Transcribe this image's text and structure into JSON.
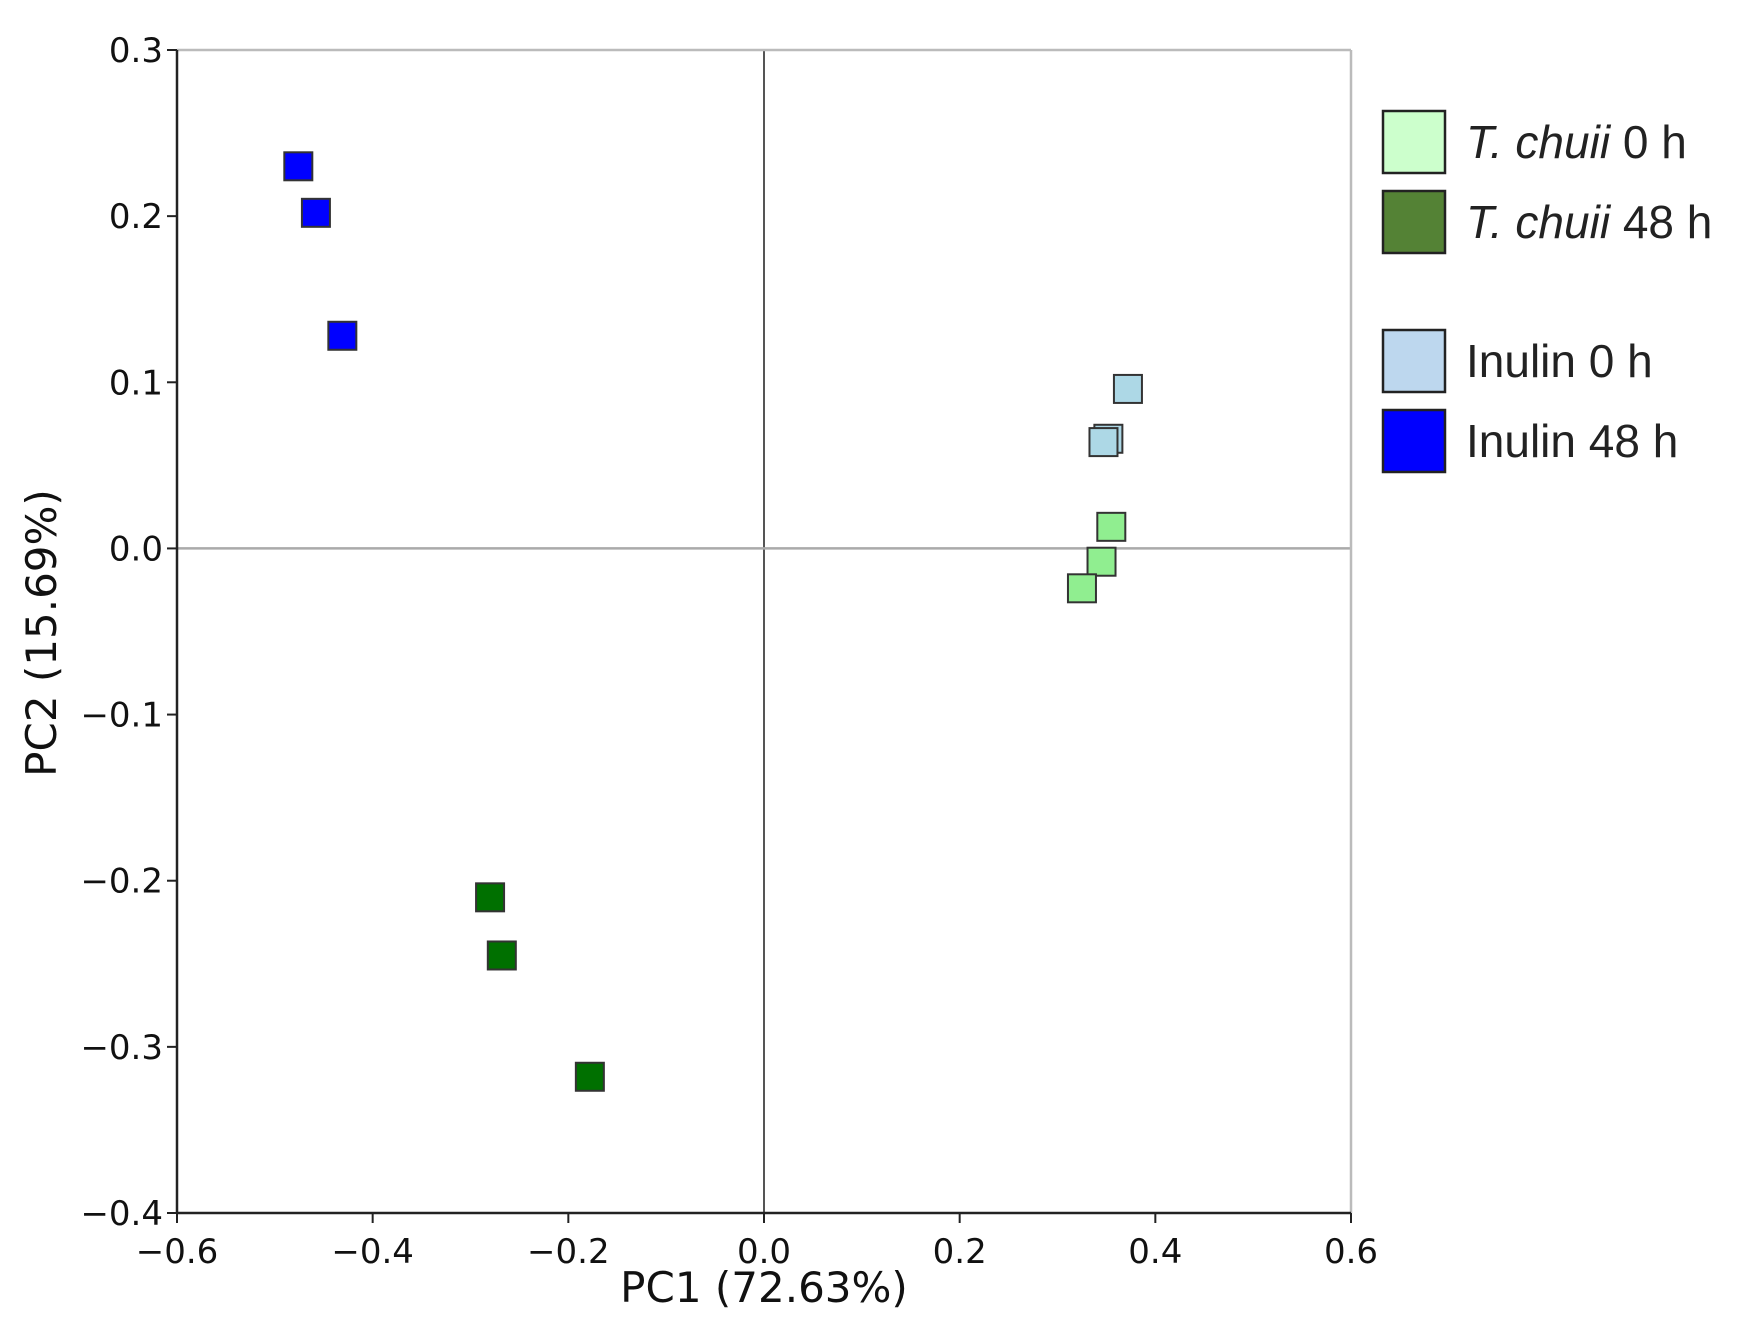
{
  "chart_data": {
    "type": "scatter",
    "title": "",
    "xlabel": "PC1 (72.63%)",
    "ylabel": "PC2 (15.69%)",
    "xlim": [
      -0.6,
      0.6
    ],
    "ylim": [
      -0.4,
      0.3
    ],
    "xticks": [
      -0.6,
      -0.4,
      -0.2,
      0.0,
      0.2,
      0.4,
      0.6
    ],
    "yticks": [
      -0.4,
      -0.3,
      -0.2,
      -0.1,
      0.0,
      0.1,
      0.2,
      0.3
    ],
    "xtick_labels": [
      "−0.6",
      "−0.4",
      "−0.2",
      "0.0",
      "0.2",
      "0.4",
      "0.6"
    ],
    "ytick_labels": [
      "−0.4",
      "−0.3",
      "−0.2",
      "−0.1",
      "0.0",
      "0.1",
      "0.2",
      "0.3"
    ],
    "grid": false,
    "zero_lines": true,
    "marker": "square",
    "legend_position": "right",
    "series": [
      {
        "name_italic": "T. chuii",
        "name_rest": " 0 h",
        "color": "#90ee90",
        "legend_color": "#ccffcc",
        "points": [
          {
            "x": 0.355,
            "y": 0.013
          },
          {
            "x": 0.345,
            "y": -0.008
          },
          {
            "x": 0.325,
            "y": -0.024
          }
        ]
      },
      {
        "name_italic": "T. chuii",
        "name_rest": " 48 h",
        "color": "#007000",
        "legend_color": "#548235",
        "points": [
          {
            "x": -0.28,
            "y": -0.21
          },
          {
            "x": -0.268,
            "y": -0.245
          },
          {
            "x": -0.178,
            "y": -0.318
          }
        ]
      },
      {
        "name_italic": "",
        "name_rest": "Inulin 0 h",
        "color": "#add8e6",
        "legend_color": "#bdd7ee",
        "points": [
          {
            "x": 0.372,
            "y": 0.096
          },
          {
            "x": 0.352,
            "y": 0.066
          },
          {
            "x": 0.347,
            "y": 0.064
          }
        ]
      },
      {
        "name_italic": "",
        "name_rest": "Inulin 48 h",
        "color": "#0000ff",
        "legend_color": "#0000ff",
        "points": [
          {
            "x": -0.476,
            "y": 0.23
          },
          {
            "x": -0.458,
            "y": 0.202
          },
          {
            "x": -0.431,
            "y": 0.128
          }
        ]
      }
    ]
  }
}
